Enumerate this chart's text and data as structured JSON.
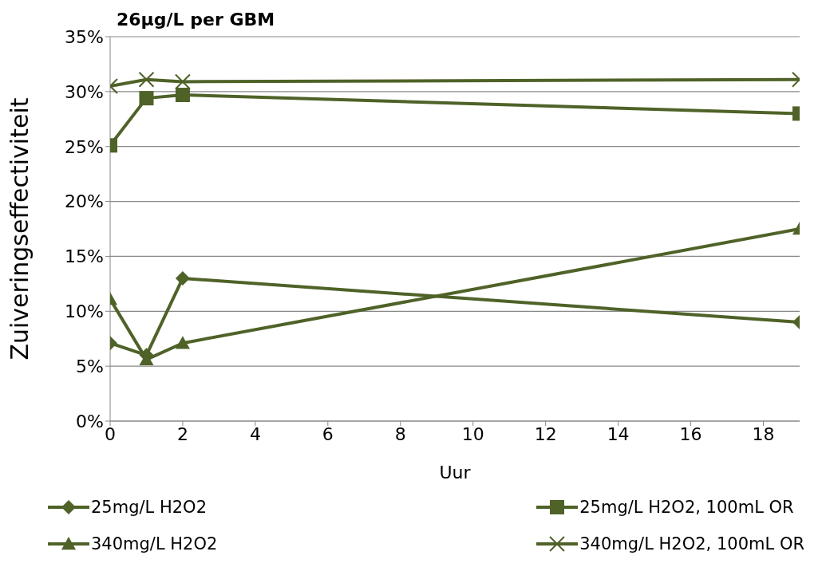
{
  "chart_data": {
    "type": "line",
    "title": "26μg/L per GBM",
    "xlabel": "Uur",
    "ylabel": "Zuiveringseffectiviteit",
    "x": [
      0,
      1,
      2,
      19
    ],
    "xlim": [
      0,
      19
    ],
    "xticks": [
      0,
      2,
      4,
      6,
      8,
      10,
      12,
      14,
      16,
      18
    ],
    "ylim": [
      0,
      35
    ],
    "yticks": [
      {
        "value": 0,
        "label": "0%"
      },
      {
        "value": 5,
        "label": "5%"
      },
      {
        "value": 10,
        "label": "10%"
      },
      {
        "value": 15,
        "label": "15%"
      },
      {
        "value": 20,
        "label": "20%"
      },
      {
        "value": 25,
        "label": "25%"
      },
      {
        "value": 30,
        "label": "30%"
      },
      {
        "value": 35,
        "label": "35%"
      }
    ],
    "grid": "y",
    "legend": "bottom",
    "line_style": "solid",
    "series": [
      {
        "name": "25mg/L H2O2",
        "color": "#4f6228",
        "marker": "diamond",
        "values": [
          7.1,
          6.0,
          13.0,
          9.0
        ]
      },
      {
        "name": "25mg/L H2O2, 100mL OR",
        "color": "#4f6228",
        "marker": "square",
        "values": [
          25.1,
          29.4,
          29.7,
          28.0
        ]
      },
      {
        "name": "340mg/L H2O2",
        "color": "#4f6228",
        "marker": "triangle",
        "values": [
          11.1,
          5.6,
          7.1,
          17.5
        ]
      },
      {
        "name": "340mg/L H2O2, 100mL OR",
        "color": "#4f6228",
        "marker": "cross",
        "values": [
          30.5,
          31.1,
          30.9,
          31.1
        ]
      }
    ]
  }
}
